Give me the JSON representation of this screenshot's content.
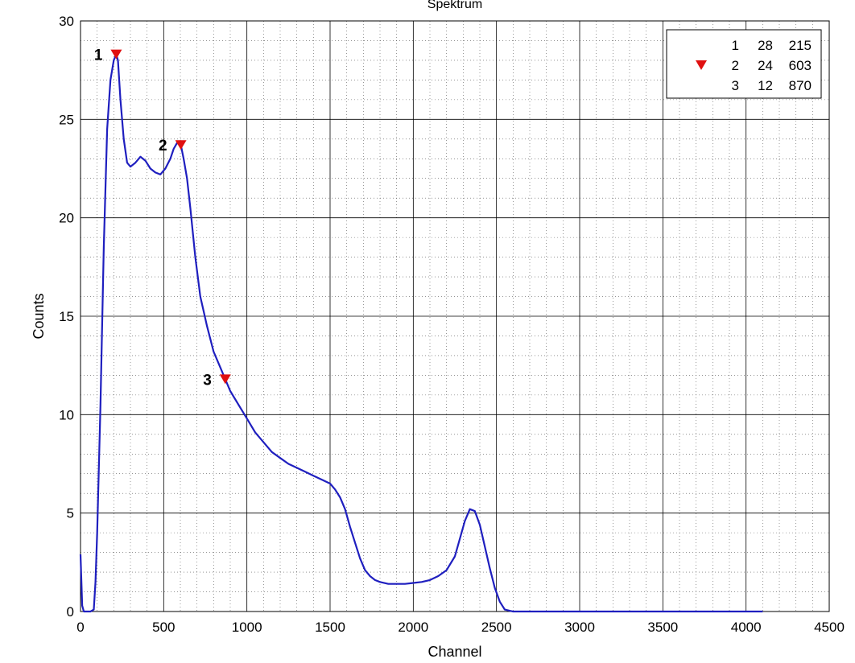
{
  "chart_data": {
    "type": "line",
    "title": "Spektrum",
    "xlabel": "Channel",
    "ylabel": "Counts",
    "xlim": [
      0,
      4500
    ],
    "ylim": [
      0,
      30
    ],
    "x_ticks": [
      "0",
      "500",
      "1000",
      "1500",
      "2000",
      "2500",
      "3000",
      "3500",
      "4000",
      "4500"
    ],
    "y_ticks": [
      "0",
      "5",
      "10",
      "15",
      "20",
      "25",
      "30"
    ],
    "grid": "major solid, minor dotted",
    "line_color": "#1f1fbf",
    "marker_color": "#e01010",
    "legend_position": "top-right",
    "series": [
      {
        "x": [
          0,
          10,
          20,
          40,
          60,
          80,
          90,
          100,
          120,
          140,
          160,
          180,
          200,
          215,
          225,
          240,
          260,
          280,
          300,
          330,
          360,
          390,
          420,
          450,
          480,
          510,
          540,
          560,
          580,
          603,
          620,
          640,
          660,
          690,
          720,
          760,
          800,
          840,
          870,
          900,
          950,
          1000,
          1050,
          1100,
          1150,
          1200,
          1250,
          1300,
          1350,
          1400,
          1450,
          1500,
          1530,
          1560,
          1590,
          1620,
          1650,
          1680,
          1710,
          1740,
          1770,
          1800,
          1850,
          1900,
          1950,
          2000,
          2050,
          2100,
          2150,
          2200,
          2250,
          2280,
          2310,
          2340,
          2370,
          2400,
          2430,
          2460,
          2490,
          2520,
          2550,
          2600,
          2650,
          2700,
          2800,
          3000,
          3200,
          3400,
          3600,
          3800,
          4000,
          4100
        ],
        "y": [
          2.9,
          0.3,
          0.0,
          0.0,
          0.0,
          0.1,
          1.5,
          4.0,
          10.5,
          18.5,
          24.5,
          27.0,
          28.0,
          28.3,
          28.0,
          26.0,
          24.0,
          22.8,
          22.6,
          22.8,
          23.1,
          22.9,
          22.5,
          22.3,
          22.2,
          22.5,
          23.0,
          23.5,
          23.8,
          23.7,
          23.0,
          22.0,
          20.5,
          18.0,
          16.0,
          14.5,
          13.2,
          12.4,
          11.8,
          11.2,
          10.5,
          9.8,
          9.1,
          8.6,
          8.1,
          7.8,
          7.5,
          7.3,
          7.1,
          6.9,
          6.7,
          6.5,
          6.2,
          5.8,
          5.2,
          4.3,
          3.5,
          2.7,
          2.1,
          1.8,
          1.6,
          1.5,
          1.4,
          1.4,
          1.4,
          1.45,
          1.5,
          1.6,
          1.8,
          2.1,
          2.8,
          3.7,
          4.6,
          5.2,
          5.1,
          4.4,
          3.3,
          2.2,
          1.2,
          0.5,
          0.1,
          0.0,
          0.0,
          0.0,
          0.0,
          0.0,
          0.0,
          0.0,
          0.0,
          0.0,
          0.0,
          0.0
        ]
      }
    ],
    "peaks": [
      {
        "label": "1",
        "x": 215,
        "y": 28.3
      },
      {
        "label": "2",
        "x": 603,
        "y": 23.7
      },
      {
        "label": "3",
        "x": 870,
        "y": 11.8
      }
    ],
    "legend": {
      "rows": [
        {
          "id": "1",
          "count": "28",
          "channel": "215",
          "marker": false
        },
        {
          "id": "2",
          "count": "24",
          "channel": "603",
          "marker": true
        },
        {
          "id": "3",
          "count": "12",
          "channel": "870",
          "marker": false
        }
      ]
    }
  }
}
